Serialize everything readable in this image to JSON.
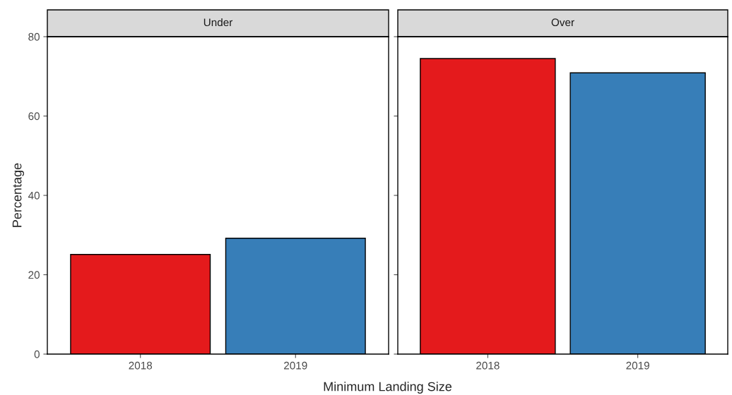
{
  "chart_data": [
    {
      "type": "bar",
      "title": "Under",
      "categories": [
        "2018",
        "2019"
      ],
      "values": [
        25.1,
        29.2
      ],
      "colors": [
        "#e41a1c",
        "#377eb8"
      ],
      "ylim": [
        0,
        80
      ],
      "yticks": [
        0,
        20,
        40,
        60,
        80
      ],
      "ylabel": "Percentage",
      "xlabel": "Minimum Landing Size",
      "grid": false,
      "legend": false
    },
    {
      "type": "bar",
      "title": "Over",
      "categories": [
        "2018",
        "2019"
      ],
      "values": [
        74.5,
        70.9
      ],
      "colors": [
        "#e41a1c",
        "#377eb8"
      ],
      "ylim": [
        0,
        80
      ],
      "yticks": [
        0,
        20,
        40,
        60,
        80
      ],
      "tick_labels": "x",
      "grid": false,
      "legend": false
    }
  ]
}
